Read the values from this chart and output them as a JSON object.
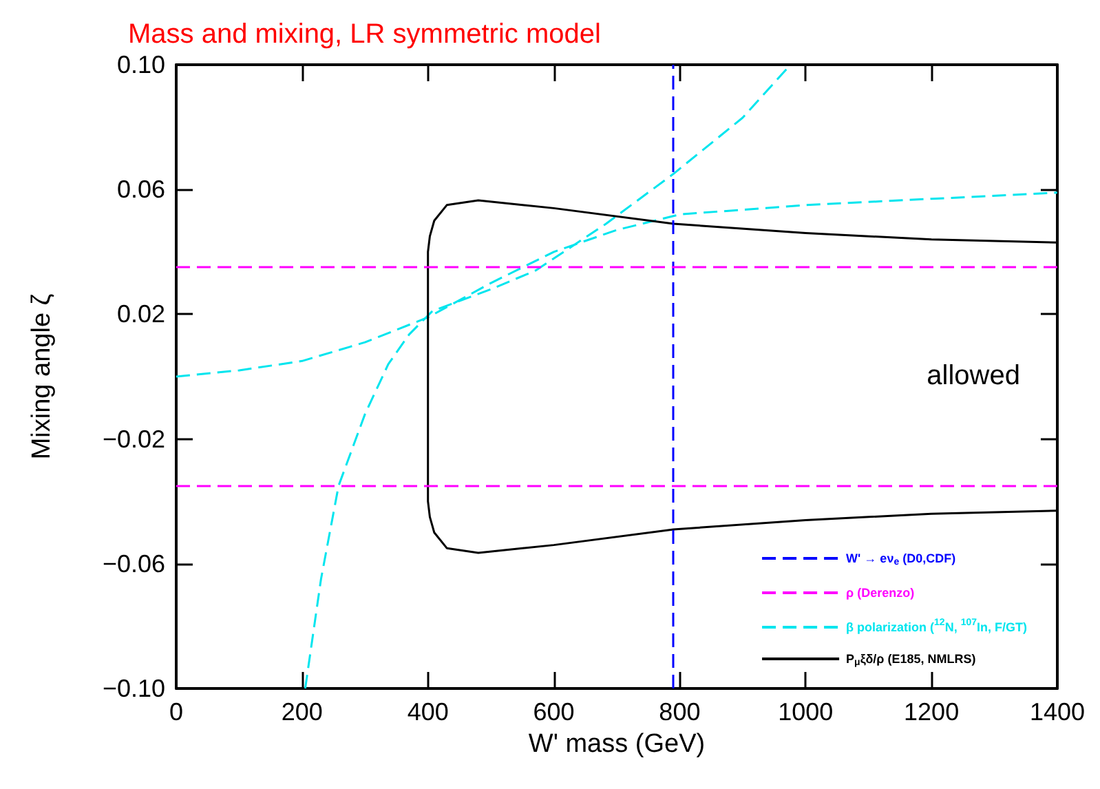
{
  "chart_data": {
    "type": "line",
    "title": "Mass and mixing, LR symmetric model",
    "xlabel": "W' mass (GeV)",
    "ylabel": "Mixing angle ζ",
    "xlim": [
      0,
      1400
    ],
    "xticks": [
      0,
      200,
      400,
      600,
      800,
      1000,
      1200,
      1400
    ],
    "ylim": [
      -0.1,
      0.1
    ],
    "yticks": [
      {
        "value": -0.1,
        "label": "−0.10"
      },
      {
        "value": -0.06,
        "label": "−0.06"
      },
      {
        "value": -0.02,
        "label": "−0.02"
      },
      {
        "value": 0.02,
        "label": "0.02"
      },
      {
        "value": 0.06,
        "label": "0.06"
      },
      {
        "value": 0.1,
        "label": "0.10"
      }
    ],
    "grid": false,
    "legend": "bottom right",
    "marker": "none",
    "series": [
      {
        "name": "β polarization ($^{12}$N, $^{107}$In, F/GT)",
        "color": "#00e5ee",
        "line_style": "dashed",
        "x": [
          0,
          100,
          200,
          300,
          400,
          500,
          600,
          700,
          800,
          1000,
          1200,
          1400
        ],
        "values": [
          0.0,
          0.002,
          0.005,
          0.011,
          0.019,
          0.03,
          0.04,
          0.047,
          0.052,
          0.055,
          0.057,
          0.059
        ]
      },
      {
        "color": "#00e5ee",
        "line_style": "dashed",
        "x": [
          205,
          230,
          258,
          300,
          337,
          370,
          407,
          500,
          571,
          683,
          790,
          900,
          976
        ],
        "values": [
          -0.1,
          -0.065,
          -0.035,
          -0.012,
          0.004,
          0.0135,
          0.021,
          0.028,
          0.034,
          0.049,
          0.065,
          0.083,
          0.1
        ]
      },
      {
        "name": "P$_{μ}$ξδ/ρ (E185, NMLRS)",
        "color": "#000000",
        "line_style": "solid",
        "x": [
          1400,
          1200,
          1000,
          790,
          600,
          480,
          430,
          410,
          403,
          400,
          400,
          403,
          410,
          430,
          480,
          600,
          790,
          1000,
          1200,
          1400
        ],
        "values": [
          0.043,
          0.044,
          0.046,
          0.049,
          0.054,
          0.0565,
          0.055,
          0.05,
          0.045,
          0.04,
          -0.04,
          -0.045,
          -0.05,
          -0.055,
          -0.0565,
          -0.054,
          -0.049,
          -0.046,
          -0.044,
          -0.043
        ]
      }
    ],
    "ref_lines": [
      {
        "axis": "x",
        "value": 790,
        "label": "W' → eν$_{e}$ (D0,CDF)",
        "color": "#0000ff",
        "line_style": "dashed"
      },
      {
        "axis": "y",
        "value": 0.035,
        "label": "ρ (Derenzo)",
        "color": "#ff00ff",
        "line_style": "dashed"
      },
      {
        "axis": "y",
        "value": -0.035,
        "color": "#ff00ff",
        "line_style": "dashed"
      }
    ],
    "annotations": [
      "allowed"
    ]
  }
}
